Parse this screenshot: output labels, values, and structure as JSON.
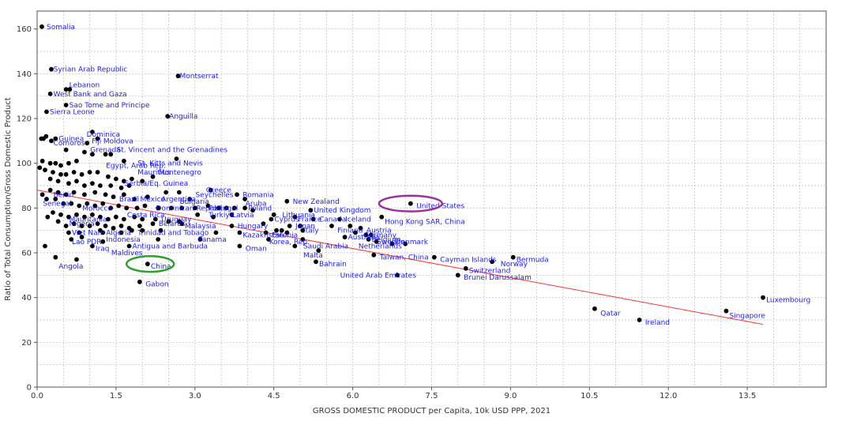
{
  "chart_data": {
    "type": "scatter",
    "title": "",
    "xlabel": "GROSS DOMESTIC PRODUCT per Capita, 10k USD PPP, 2021",
    "ylabel": "Ratio of Total Consumption/Gross Domestic Product",
    "xlim": [
      0,
      15
    ],
    "ylim": [
      0,
      168
    ],
    "x_ticks": [
      0,
      1.5,
      3,
      4.5,
      6,
      7.5,
      9,
      10.5,
      12,
      13.5
    ],
    "x_tick_labels": [
      "0.0",
      "1.5",
      "3.0",
      "4.5",
      "6.0",
      "7.5",
      "9.0",
      "10.5",
      "12.0",
      "13.5"
    ],
    "y_ticks": [
      0,
      20,
      40,
      60,
      80,
      100,
      120,
      140,
      160
    ],
    "y_tick_labels": [
      "0",
      "20",
      "40",
      "60",
      "80",
      "100",
      "120",
      "140",
      "160"
    ],
    "grid": true,
    "colors": {
      "point": "#000000",
      "label": "#1a1aff",
      "trend": "#ff3333",
      "highlight_green": "#2ca02c",
      "highlight_purple": "#9b30a0",
      "grid": "#bbbbbb"
    },
    "trendline": {
      "from": [
        0,
        88
      ],
      "to": [
        13.8,
        28
      ]
    },
    "highlights": [
      {
        "label": "China",
        "x": 2.15,
        "y": 55,
        "rx": 0.45,
        "ry": 3.5,
        "color": "#2ca02c"
      },
      {
        "label": "United States",
        "x": 7.1,
        "y": 82,
        "rx": 0.6,
        "ry": 3.5,
        "color": "#9b30a0"
      }
    ],
    "labeled_points": [
      {
        "label": "Somalia",
        "x": 0.12,
        "y": 161
      },
      {
        "label": "Syrian Arab Republic",
        "x": 0.25,
        "y": 142
      },
      {
        "label": "Lebanon",
        "x": 0.55,
        "y": 135
      },
      {
        "label": "West Bank and Gaza",
        "x": 0.25,
        "y": 131
      },
      {
        "label": "Montserrat",
        "x": 2.65,
        "y": 139
      },
      {
        "label": "Sao Tome and Principe",
        "x": 0.55,
        "y": 126
      },
      {
        "label": "Sierra Leone",
        "x": 0.18,
        "y": 123
      },
      {
        "label": "Anguilla",
        "x": 2.45,
        "y": 121
      },
      {
        "label": "Dominica",
        "x": 0.88,
        "y": 113
      },
      {
        "label": "Guinea",
        "x": 0.35,
        "y": 111
      },
      {
        "label": "Fiji",
        "x": 0.98,
        "y": 110
      },
      {
        "label": "Moldova",
        "x": 1.2,
        "y": 110
      },
      {
        "label": "Comoros",
        "x": 0.25,
        "y": 109
      },
      {
        "label": "Grenada",
        "x": 0.95,
        "y": 106
      },
      {
        "label": "St. Vincent and the Grenadines",
        "x": 1.45,
        "y": 106
      },
      {
        "label": "St. Kitts and Nevis",
        "x": 1.85,
        "y": 100
      },
      {
        "label": "Egypt, Arab Rep.",
        "x": 1.25,
        "y": 99
      },
      {
        "label": "Mauritius",
        "x": 1.85,
        "y": 96
      },
      {
        "label": "Montenegro",
        "x": 2.25,
        "y": 96
      },
      {
        "label": "Serbia/Eq. Guinea",
        "x": 1.6,
        "y": 91
      },
      {
        "label": "Greece",
        "x": 3.15,
        "y": 88
      },
      {
        "label": "Seychelles",
        "x": 2.95,
        "y": 86
      },
      {
        "label": "Romania",
        "x": 3.85,
        "y": 86
      },
      {
        "label": "Mexico",
        "x": 1.9,
        "y": 84
      },
      {
        "label": "Argentina",
        "x": 2.3,
        "y": 84
      },
      {
        "label": "Bulgaria",
        "x": 2.65,
        "y": 83
      },
      {
        "label": "Aruba",
        "x": 3.9,
        "y": 82
      },
      {
        "label": "Brazil",
        "x": 1.5,
        "y": 84
      },
      {
        "label": "Benin",
        "x": 0.25,
        "y": 86
      },
      {
        "label": "Senegal",
        "x": 0.05,
        "y": 82
      },
      {
        "label": "Morocco",
        "x": 0.8,
        "y": 80
      },
      {
        "label": "Dominican Republic",
        "x": 2.2,
        "y": 80
      },
      {
        "label": "Portugal",
        "x": 3.2,
        "y": 80
      },
      {
        "label": "Poland",
        "x": 3.95,
        "y": 80
      },
      {
        "label": "New Zealand",
        "x": 4.8,
        "y": 83
      },
      {
        "label": "United Kingdom",
        "x": 5.2,
        "y": 79
      },
      {
        "label": "Lithuania",
        "x": 4.6,
        "y": 77
      },
      {
        "label": "Turkiye",
        "x": 3.2,
        "y": 77
      },
      {
        "label": "Latvia",
        "x": 3.65,
        "y": 77
      },
      {
        "label": "Canada",
        "x": 5.3,
        "y": 75
      },
      {
        "label": "Iceland",
        "x": 5.8,
        "y": 75
      },
      {
        "label": "Cyprus",
        "x": 4.45,
        "y": 75
      },
      {
        "label": "France",
        "x": 4.9,
        "y": 75
      },
      {
        "label": "Hong Kong SAR, China",
        "x": 6.55,
        "y": 74
      },
      {
        "label": "Costa Rica",
        "x": 1.65,
        "y": 77
      },
      {
        "label": "Uruguay",
        "x": 2.3,
        "y": 75
      },
      {
        "label": "Mauritania",
        "x": 0.55,
        "y": 75
      },
      {
        "label": "Nigeria",
        "x": 0.55,
        "y": 73
      },
      {
        "label": "Belarus",
        "x": 2.25,
        "y": 73
      },
      {
        "label": "Malaysia",
        "x": 2.75,
        "y": 72
      },
      {
        "label": "Hungary",
        "x": 3.75,
        "y": 72
      },
      {
        "label": "Japan",
        "x": 4.85,
        "y": 72
      },
      {
        "label": "Italy",
        "x": 5.0,
        "y": 70
      },
      {
        "label": "Finland",
        "x": 5.65,
        "y": 70
      },
      {
        "label": "Austria",
        "x": 6.2,
        "y": 70
      },
      {
        "label": "Germany",
        "x": 6.15,
        "y": 68
      },
      {
        "label": "Viet Nam",
        "x": 0.6,
        "y": 69
      },
      {
        "label": "Algeria",
        "x": 1.25,
        "y": 69
      },
      {
        "label": "Trinidad and Tobago",
        "x": 1.85,
        "y": 69
      },
      {
        "label": "Kazakhstan",
        "x": 3.85,
        "y": 68
      },
      {
        "label": "Estonia",
        "x": 4.4,
        "y": 68
      },
      {
        "label": "Australia",
        "x": 5.85,
        "y": 67
      },
      {
        "label": "Belgium",
        "x": 6.3,
        "y": 66
      },
      {
        "label": "Sweden",
        "x": 6.4,
        "y": 65
      },
      {
        "label": "Denmark",
        "x": 6.75,
        "y": 65
      },
      {
        "label": "Panama",
        "x": 3.0,
        "y": 66
      },
      {
        "label": "Lao PDR",
        "x": 0.6,
        "y": 65
      },
      {
        "label": "Indonesia",
        "x": 1.25,
        "y": 66
      },
      {
        "label": "Antigua and Barbuda",
        "x": 1.75,
        "y": 63
      },
      {
        "label": "Korea, Rep.",
        "x": 4.35,
        "y": 65
      },
      {
        "label": "Saudi Arabia",
        "x": 5.0,
        "y": 63
      },
      {
        "label": "Netherlands",
        "x": 6.05,
        "y": 63
      },
      {
        "label": "Oman",
        "x": 3.9,
        "y": 62
      },
      {
        "label": "Iraq",
        "x": 1.05,
        "y": 62
      },
      {
        "label": "Maldives",
        "x": 1.35,
        "y": 60
      },
      {
        "label": "Malta",
        "x": 5.0,
        "y": 59
      },
      {
        "label": "Taiwan, China",
        "x": 6.45,
        "y": 58
      },
      {
        "label": "Cayman Islands",
        "x": 7.6,
        "y": 57
      },
      {
        "label": "Bermuda",
        "x": 9.05,
        "y": 57
      },
      {
        "label": "Norway",
        "x": 8.75,
        "y": 55
      },
      {
        "label": "Switzerland",
        "x": 8.15,
        "y": 52
      },
      {
        "label": "Angola",
        "x": 0.35,
        "y": 54
      },
      {
        "label": "Bahrain",
        "x": 5.3,
        "y": 55
      },
      {
        "label": "China",
        "x": 2.1,
        "y": 54
      },
      {
        "label": "United Arab Emirates",
        "x": 5.7,
        "y": 50
      },
      {
        "label": "Brunei Darussalam",
        "x": 8.05,
        "y": 49
      },
      {
        "label": "Gabon",
        "x": 2.0,
        "y": 46
      },
      {
        "label": "United States",
        "x": 7.15,
        "y": 81
      },
      {
        "label": "Luxembourg",
        "x": 13.8,
        "y": 39
      },
      {
        "label": "Qatar",
        "x": 10.65,
        "y": 33
      },
      {
        "label": "Singapore",
        "x": 13.1,
        "y": 32
      },
      {
        "label": "Ireland",
        "x": 11.5,
        "y": 29
      }
    ],
    "unlabeled_points": [
      {
        "x": 0.09,
        "y": 161
      },
      {
        "x": 0.27,
        "y": 142
      },
      {
        "x": 0.55,
        "y": 133
      },
      {
        "x": 0.25,
        "y": 131
      },
      {
        "x": 2.68,
        "y": 139
      },
      {
        "x": 0.55,
        "y": 126
      },
      {
        "x": 0.18,
        "y": 123
      },
      {
        "x": 0.62,
        "y": 133
      },
      {
        "x": 2.48,
        "y": 121
      },
      {
        "x": 1.05,
        "y": 114
      },
      {
        "x": 0.08,
        "y": 111
      },
      {
        "x": 0.17,
        "y": 112
      },
      {
        "x": 0.35,
        "y": 111
      },
      {
        "x": 0.12,
        "y": 111
      },
      {
        "x": 0.27,
        "y": 110
      },
      {
        "x": 0.95,
        "y": 109
      },
      {
        "x": 1.15,
        "y": 111
      },
      {
        "x": 0.55,
        "y": 106
      },
      {
        "x": 1.05,
        "y": 104
      },
      {
        "x": 1.3,
        "y": 104
      },
      {
        "x": 1.4,
        "y": 104
      },
      {
        "x": 0.9,
        "y": 105
      },
      {
        "x": 1.65,
        "y": 101
      },
      {
        "x": 2.65,
        "y": 102
      },
      {
        "x": 0.1,
        "y": 101
      },
      {
        "x": 0.25,
        "y": 100
      },
      {
        "x": 0.35,
        "y": 100
      },
      {
        "x": 0.45,
        "y": 99
      },
      {
        "x": 0.6,
        "y": 100
      },
      {
        "x": 0.75,
        "y": 101
      },
      {
        "x": 0.05,
        "y": 98
      },
      {
        "x": 0.15,
        "y": 97
      },
      {
        "x": 0.3,
        "y": 96
      },
      {
        "x": 0.45,
        "y": 95
      },
      {
        "x": 0.55,
        "y": 95
      },
      {
        "x": 0.7,
        "y": 96
      },
      {
        "x": 0.85,
        "y": 95
      },
      {
        "x": 1.0,
        "y": 96
      },
      {
        "x": 1.15,
        "y": 96
      },
      {
        "x": 1.35,
        "y": 94
      },
      {
        "x": 1.5,
        "y": 93
      },
      {
        "x": 1.65,
        "y": 92
      },
      {
        "x": 1.8,
        "y": 93
      },
      {
        "x": 2.0,
        "y": 92
      },
      {
        "x": 2.2,
        "y": 94
      },
      {
        "x": 0.25,
        "y": 93
      },
      {
        "x": 0.4,
        "y": 92
      },
      {
        "x": 0.6,
        "y": 91
      },
      {
        "x": 0.75,
        "y": 92
      },
      {
        "x": 0.9,
        "y": 90
      },
      {
        "x": 1.05,
        "y": 91
      },
      {
        "x": 1.2,
        "y": 90
      },
      {
        "x": 1.4,
        "y": 90
      },
      {
        "x": 1.6,
        "y": 89
      },
      {
        "x": 1.75,
        "y": 90
      },
      {
        "x": 0.25,
        "y": 88
      },
      {
        "x": 0.4,
        "y": 87
      },
      {
        "x": 0.55,
        "y": 86
      },
      {
        "x": 0.7,
        "y": 87
      },
      {
        "x": 0.9,
        "y": 86
      },
      {
        "x": 1.1,
        "y": 87
      },
      {
        "x": 1.3,
        "y": 86
      },
      {
        "x": 1.45,
        "y": 85
      },
      {
        "x": 1.65,
        "y": 86
      },
      {
        "x": 2.45,
        "y": 87
      },
      {
        "x": 2.7,
        "y": 87
      },
      {
        "x": 3.3,
        "y": 88
      },
      {
        "x": 3.8,
        "y": 86
      },
      {
        "x": 3.95,
        "y": 84
      },
      {
        "x": 2.9,
        "y": 84
      },
      {
        "x": 2.1,
        "y": 85
      },
      {
        "x": 1.85,
        "y": 84
      },
      {
        "x": 0.1,
        "y": 86
      },
      {
        "x": 0.18,
        "y": 84
      },
      {
        "x": 0.35,
        "y": 84
      },
      {
        "x": 0.5,
        "y": 82
      },
      {
        "x": 0.65,
        "y": 82
      },
      {
        "x": 0.8,
        "y": 81
      },
      {
        "x": 0.95,
        "y": 82
      },
      {
        "x": 1.1,
        "y": 81
      },
      {
        "x": 1.25,
        "y": 82
      },
      {
        "x": 1.4,
        "y": 80
      },
      {
        "x": 1.55,
        "y": 81
      },
      {
        "x": 1.7,
        "y": 80
      },
      {
        "x": 1.9,
        "y": 80
      },
      {
        "x": 2.05,
        "y": 81
      },
      {
        "x": 2.3,
        "y": 80
      },
      {
        "x": 2.55,
        "y": 80
      },
      {
        "x": 2.75,
        "y": 80
      },
      {
        "x": 3.0,
        "y": 80
      },
      {
        "x": 3.25,
        "y": 81
      },
      {
        "x": 3.45,
        "y": 80
      },
      {
        "x": 3.6,
        "y": 80
      },
      {
        "x": 3.75,
        "y": 80
      },
      {
        "x": 3.95,
        "y": 80
      },
      {
        "x": 4.1,
        "y": 79
      },
      {
        "x": 4.75,
        "y": 83
      },
      {
        "x": 5.2,
        "y": 79
      },
      {
        "x": 4.5,
        "y": 77
      },
      {
        "x": 3.7,
        "y": 77
      },
      {
        "x": 0.3,
        "y": 78
      },
      {
        "x": 0.45,
        "y": 77
      },
      {
        "x": 0.6,
        "y": 76
      },
      {
        "x": 0.75,
        "y": 77
      },
      {
        "x": 0.9,
        "y": 76
      },
      {
        "x": 1.05,
        "y": 77
      },
      {
        "x": 1.2,
        "y": 76
      },
      {
        "x": 1.35,
        "y": 75
      },
      {
        "x": 1.5,
        "y": 76
      },
      {
        "x": 1.65,
        "y": 75
      },
      {
        "x": 1.85,
        "y": 76
      },
      {
        "x": 2.0,
        "y": 75
      },
      {
        "x": 2.25,
        "y": 75
      },
      {
        "x": 2.5,
        "y": 74
      },
      {
        "x": 2.7,
        "y": 74
      },
      {
        "x": 3.05,
        "y": 77
      },
      {
        "x": 3.35,
        "y": 76
      },
      {
        "x": 4.45,
        "y": 75
      },
      {
        "x": 4.9,
        "y": 76
      },
      {
        "x": 5.25,
        "y": 75
      },
      {
        "x": 5.75,
        "y": 75
      },
      {
        "x": 6.55,
        "y": 76
      },
      {
        "x": 0.2,
        "y": 76
      },
      {
        "x": 0.4,
        "y": 74
      },
      {
        "x": 0.55,
        "y": 72
      },
      {
        "x": 0.7,
        "y": 73
      },
      {
        "x": 0.85,
        "y": 72
      },
      {
        "x": 1.0,
        "y": 72
      },
      {
        "x": 1.15,
        "y": 73
      },
      {
        "x": 1.3,
        "y": 72
      },
      {
        "x": 1.45,
        "y": 71
      },
      {
        "x": 1.6,
        "y": 72
      },
      {
        "x": 1.75,
        "y": 71
      },
      {
        "x": 1.95,
        "y": 72
      },
      {
        "x": 2.2,
        "y": 73
      },
      {
        "x": 2.75,
        "y": 73
      },
      {
        "x": 3.7,
        "y": 72
      },
      {
        "x": 4.3,
        "y": 73
      },
      {
        "x": 4.8,
        "y": 72
      },
      {
        "x": 5.0,
        "y": 72
      },
      {
        "x": 5.6,
        "y": 72
      },
      {
        "x": 5.95,
        "y": 72
      },
      {
        "x": 6.15,
        "y": 71
      },
      {
        "x": 0.6,
        "y": 69
      },
      {
        "x": 0.8,
        "y": 69
      },
      {
        "x": 1.2,
        "y": 70
      },
      {
        "x": 1.25,
        "y": 69
      },
      {
        "x": 1.6,
        "y": 69
      },
      {
        "x": 1.8,
        "y": 70
      },
      {
        "x": 2.0,
        "y": 70
      },
      {
        "x": 2.35,
        "y": 70
      },
      {
        "x": 3.4,
        "y": 69
      },
      {
        "x": 3.85,
        "y": 69
      },
      {
        "x": 4.35,
        "y": 69
      },
      {
        "x": 4.55,
        "y": 70
      },
      {
        "x": 4.65,
        "y": 70
      },
      {
        "x": 4.75,
        "y": 69
      },
      {
        "x": 5.05,
        "y": 70
      },
      {
        "x": 6.05,
        "y": 69
      },
      {
        "x": 6.25,
        "y": 68
      },
      {
        "x": 6.35,
        "y": 68
      },
      {
        "x": 0.65,
        "y": 66
      },
      {
        "x": 0.85,
        "y": 67
      },
      {
        "x": 1.25,
        "y": 65
      },
      {
        "x": 2.3,
        "y": 66
      },
      {
        "x": 3.1,
        "y": 66
      },
      {
        "x": 4.4,
        "y": 66
      },
      {
        "x": 5.05,
        "y": 66
      },
      {
        "x": 5.85,
        "y": 67
      },
      {
        "x": 6.3,
        "y": 66
      },
      {
        "x": 6.45,
        "y": 65
      },
      {
        "x": 6.75,
        "y": 64
      },
      {
        "x": 7.0,
        "y": 64
      },
      {
        "x": 0.15,
        "y": 63
      },
      {
        "x": 1.05,
        "y": 63
      },
      {
        "x": 1.75,
        "y": 63
      },
      {
        "x": 3.85,
        "y": 63
      },
      {
        "x": 4.9,
        "y": 63
      },
      {
        "x": 5.35,
        "y": 61
      },
      {
        "x": 0.35,
        "y": 58
      },
      {
        "x": 6.4,
        "y": 59
      },
      {
        "x": 7.55,
        "y": 58
      },
      {
        "x": 9.05,
        "y": 58
      },
      {
        "x": 8.65,
        "y": 56
      },
      {
        "x": 0.75,
        "y": 57
      },
      {
        "x": 5.3,
        "y": 56
      },
      {
        "x": 8.15,
        "y": 53
      },
      {
        "x": 2.1,
        "y": 55
      },
      {
        "x": 6.85,
        "y": 50
      },
      {
        "x": 8.0,
        "y": 50
      },
      {
        "x": 1.95,
        "y": 47
      },
      {
        "x": 7.1,
        "y": 82
      },
      {
        "x": 13.8,
        "y": 40
      },
      {
        "x": 10.6,
        "y": 35
      },
      {
        "x": 13.1,
        "y": 34
      },
      {
        "x": 11.45,
        "y": 30
      }
    ]
  }
}
